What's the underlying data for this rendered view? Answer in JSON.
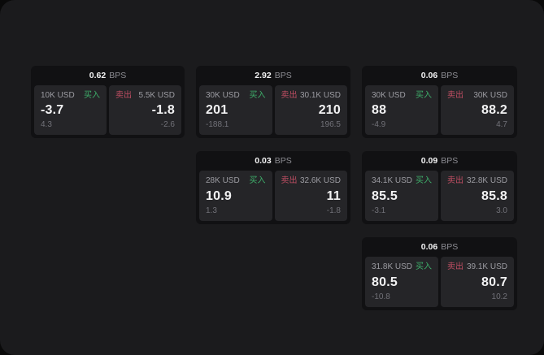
{
  "labels": {
    "bps_unit": "BPS",
    "buy": "买入",
    "sell": "卖出"
  },
  "colors": {
    "buy_green": "#3eae6a",
    "sell_red": "#c04e63",
    "background": "#1b1b1d",
    "card": "#111113",
    "panel": "#252528"
  },
  "cards": [
    {
      "bps": "0.62",
      "grid": {
        "row": 1,
        "col": 1
      },
      "buy": {
        "amount": "10K USD",
        "value": "-3.7",
        "sub": "4.3"
      },
      "sell": {
        "amount": "5.5K USD",
        "value": "-1.8",
        "sub": "-2.6"
      }
    },
    {
      "bps": "2.92",
      "grid": {
        "row": 1,
        "col": 2
      },
      "buy": {
        "amount": "30K USD",
        "value": "201",
        "sub": "-188.1"
      },
      "sell": {
        "amount": "30.1K USD",
        "value": "210",
        "sub": "196.5"
      }
    },
    {
      "bps": "0.06",
      "grid": {
        "row": 1,
        "col": 3
      },
      "buy": {
        "amount": "30K USD",
        "value": "88",
        "sub": "-4.9"
      },
      "sell": {
        "amount": "30K USD",
        "value": "88.2",
        "sub": "4.7"
      }
    },
    {
      "bps": "0.03",
      "grid": {
        "row": 2,
        "col": 2
      },
      "buy": {
        "amount": "28K USD",
        "value": "10.9",
        "sub": "1.3"
      },
      "sell": {
        "amount": "32.6K USD",
        "value": "11",
        "sub": "-1.8"
      }
    },
    {
      "bps": "0.09",
      "grid": {
        "row": 2,
        "col": 3
      },
      "buy": {
        "amount": "34.1K USD",
        "value": "85.5",
        "sub": "-3.1"
      },
      "sell": {
        "amount": "32.8K USD",
        "value": "85.8",
        "sub": "3.0"
      }
    },
    {
      "bps": "0.06",
      "grid": {
        "row": 3,
        "col": 3
      },
      "buy": {
        "amount": "31.8K USD",
        "value": "80.5",
        "sub": "-10.8"
      },
      "sell": {
        "amount": "39.1K USD",
        "value": "80.7",
        "sub": "10.2"
      }
    }
  ]
}
